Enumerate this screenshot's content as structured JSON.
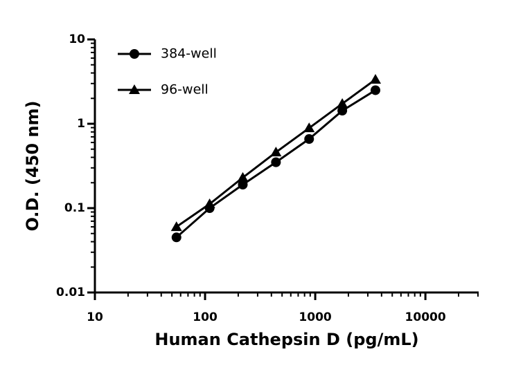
{
  "chart_data": {
    "type": "line",
    "x_label": "Human Cathepsin D (pg/mL)",
    "y_label": "O.D. (450 nm)",
    "x": [
      55,
      110,
      220,
      440,
      880,
      1760,
      3520
    ],
    "series": [
      {
        "name": "384-well",
        "color": "#000000",
        "marker": "circle",
        "values": [
          0.045,
          0.1,
          0.19,
          0.35,
          0.66,
          1.43,
          2.5
        ]
      },
      {
        "name": "96-well",
        "color": "#000000",
        "marker": "triangle",
        "values": [
          0.06,
          0.112,
          0.23,
          0.46,
          0.89,
          1.73,
          3.35
        ]
      }
    ],
    "x_log": true,
    "y_log": true,
    "xlim": [
      10,
      30000
    ],
    "ylim": [
      0.01,
      10
    ],
    "xticks": [
      10,
      100,
      1000,
      10000
    ],
    "yticks": [
      0.01,
      0.1,
      1,
      10
    ],
    "legend": "upper-left"
  }
}
